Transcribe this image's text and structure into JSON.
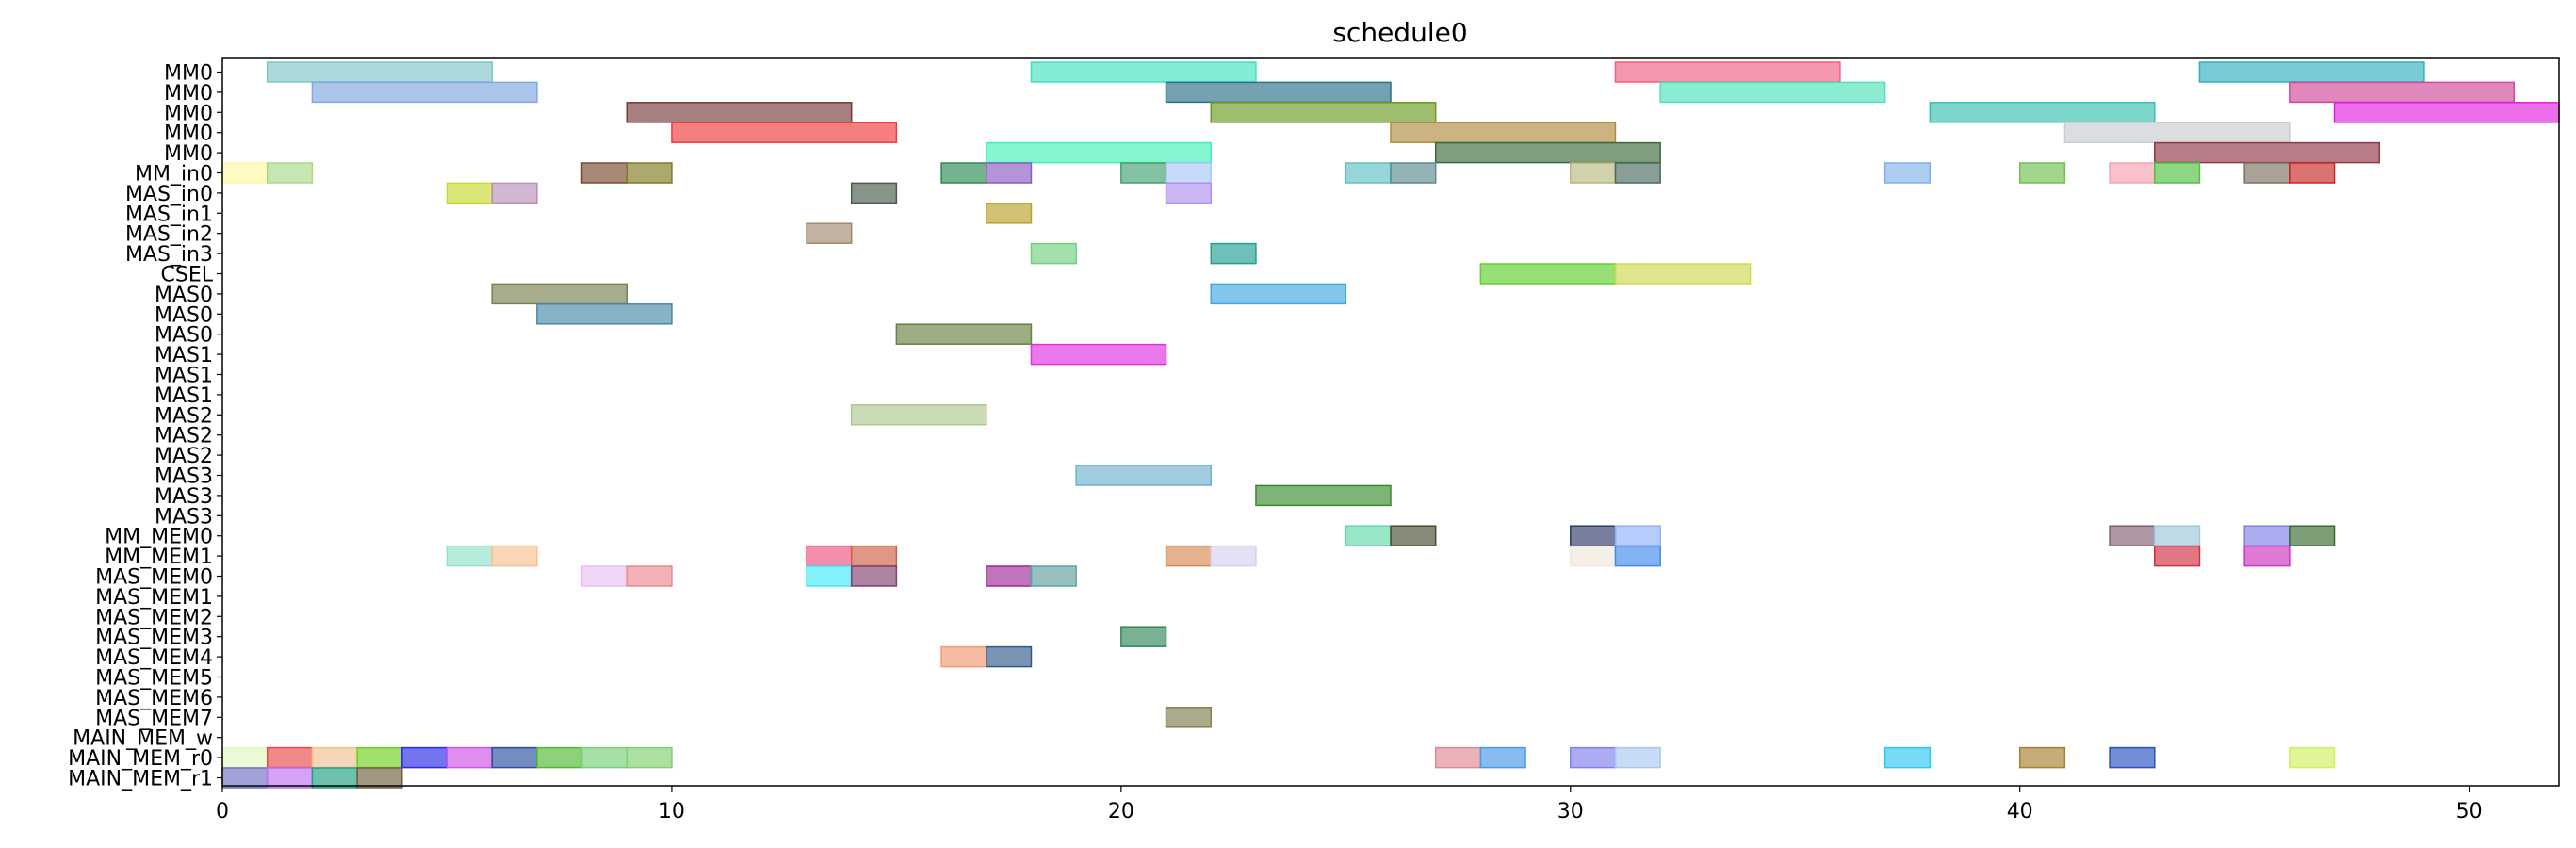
{
  "chart_data": {
    "type": "gantt",
    "title": "schedule0",
    "xlabel": "",
    "ylabel": "",
    "xlim": [
      0,
      52
    ],
    "xticks": [
      0,
      10,
      20,
      30,
      40,
      50
    ],
    "grid": false,
    "rows": [
      "MM0",
      "MM0",
      "MM0",
      "MM0",
      "MM0",
      "MM_in0",
      "MAS_in0",
      "MAS_in1",
      "MAS_in2",
      "MAS_in3",
      "CSEL",
      "MAS0",
      "MAS0",
      "MAS0",
      "MAS1",
      "MAS1",
      "MAS1",
      "MAS2",
      "MAS2",
      "MAS2",
      "MAS3",
      "MAS3",
      "MAS3",
      "MM_MEM0",
      "MM_MEM1",
      "MAS_MEM0",
      "MAS_MEM1",
      "MAS_MEM2",
      "MAS_MEM3",
      "MAS_MEM4",
      "MAS_MEM5",
      "MAS_MEM6",
      "MAS_MEM7",
      "MAIN_MEM_w",
      "MAIN_MEM_r0",
      "MAIN_MEM_r1"
    ],
    "bars": [
      {
        "row": 0,
        "start": 1,
        "end": 6,
        "color": "#7fc6c6"
      },
      {
        "row": 0,
        "start": 18,
        "end": 23,
        "color": "#40e0c0"
      },
      {
        "row": 0,
        "start": 31,
        "end": 36,
        "color": "#f06080"
      },
      {
        "row": 0,
        "start": 44,
        "end": 49,
        "color": "#30b0c0"
      },
      {
        "row": 1,
        "start": 2,
        "end": 7,
        "color": "#80a8e0"
      },
      {
        "row": 1,
        "start": 21,
        "end": 26,
        "color": "#2a7088"
      },
      {
        "row": 1,
        "start": 32,
        "end": 37,
        "color": "#50e0b8"
      },
      {
        "row": 1,
        "start": 46,
        "end": 51,
        "color": "#d04898"
      },
      {
        "row": 2,
        "start": 9,
        "end": 14,
        "color": "#7a3a3a"
      },
      {
        "row": 2,
        "start": 22,
        "end": 27,
        "color": "#6a9a20"
      },
      {
        "row": 2,
        "start": 38,
        "end": 43,
        "color": "#38c0b0"
      },
      {
        "row": 2,
        "start": 47,
        "end": 52,
        "color": "#e020e0"
      },
      {
        "row": 3,
        "start": 10,
        "end": 15,
        "color": "#f03a3a"
      },
      {
        "row": 3,
        "start": 26,
        "end": 31,
        "color": "#b08a40"
      },
      {
        "row": 3,
        "start": 41,
        "end": 46,
        "color": "#c8ccd0"
      },
      {
        "row": 4,
        "start": 17,
        "end": 22,
        "color": "#40f0b8"
      },
      {
        "row": 4,
        "start": 27,
        "end": 32,
        "color": "#3a6a3a"
      },
      {
        "row": 4,
        "start": 43,
        "end": 48,
        "color": "#903848"
      },
      {
        "row": 5,
        "start": 0,
        "end": 1,
        "color": "#fff8a0"
      },
      {
        "row": 5,
        "start": 1,
        "end": 2,
        "color": "#a8d888"
      },
      {
        "row": 5,
        "start": 8,
        "end": 9,
        "color": "#7a4a30"
      },
      {
        "row": 5,
        "start": 9,
        "end": 10,
        "color": "#807a20"
      },
      {
        "row": 5,
        "start": 16,
        "end": 17,
        "color": "#2a8a50"
      },
      {
        "row": 5,
        "start": 17,
        "end": 18,
        "color": "#8a5ac0"
      },
      {
        "row": 5,
        "start": 20,
        "end": 21,
        "color": "#40a070"
      },
      {
        "row": 5,
        "start": 21,
        "end": 22,
        "color": "#a8c8f8"
      },
      {
        "row": 5,
        "start": 25,
        "end": 26,
        "color": "#60c0c0"
      },
      {
        "row": 5,
        "start": 26,
        "end": 27,
        "color": "#5a8a90"
      },
      {
        "row": 5,
        "start": 30,
        "end": 31,
        "color": "#b8b880"
      },
      {
        "row": 5,
        "start": 31,
        "end": 32,
        "color": "#4a6a60"
      },
      {
        "row": 5,
        "start": 37,
        "end": 38,
        "color": "#80b0e8"
      },
      {
        "row": 5,
        "start": 40,
        "end": 41,
        "color": "#70c050"
      },
      {
        "row": 5,
        "start": 42,
        "end": 43,
        "color": "#f8a0b0"
      },
      {
        "row": 5,
        "start": 43,
        "end": 44,
        "color": "#50c040"
      },
      {
        "row": 5,
        "start": 45,
        "end": 46,
        "color": "#7a7060"
      },
      {
        "row": 5,
        "start": 46,
        "end": 47,
        "color": "#c82828"
      },
      {
        "row": 6,
        "start": 5,
        "end": 6,
        "color": "#c8d830"
      },
      {
        "row": 6,
        "start": 6,
        "end": 7,
        "color": "#b890b8"
      },
      {
        "row": 6,
        "start": 14,
        "end": 15,
        "color": "#4a5a4a"
      },
      {
        "row": 6,
        "start": 21,
        "end": 22,
        "color": "#b090f0"
      },
      {
        "row": 7,
        "start": 17,
        "end": 18,
        "color": "#b8a028"
      },
      {
        "row": 8,
        "start": 13,
        "end": 14,
        "color": "#a08870"
      },
      {
        "row": 9,
        "start": 18,
        "end": 19,
        "color": "#70d080"
      },
      {
        "row": 9,
        "start": 22,
        "end": 23,
        "color": "#20a090"
      },
      {
        "row": 10,
        "start": 28,
        "end": 31,
        "color": "#60d030"
      },
      {
        "row": 10,
        "start": 31,
        "end": 34,
        "color": "#d0d850"
      },
      {
        "row": 11,
        "start": 6,
        "end": 9,
        "color": "#7a8050"
      },
      {
        "row": 11,
        "start": 22,
        "end": 25,
        "color": "#40a8e0"
      },
      {
        "row": 12,
        "start": 7,
        "end": 10,
        "color": "#4a88a8"
      },
      {
        "row": 13,
        "start": 15,
        "end": 18,
        "color": "#6a8040"
      },
      {
        "row": 14,
        "start": 18,
        "end": 21,
        "color": "#e030e0"
      },
      {
        "row": 17,
        "start": 14,
        "end": 17,
        "color": "#b0c890"
      },
      {
        "row": 20,
        "start": 19,
        "end": 22,
        "color": "#70b0d0"
      },
      {
        "row": 21,
        "start": 23,
        "end": 26,
        "color": "#3a8a30"
      },
      {
        "row": 23,
        "start": 25,
        "end": 26,
        "color": "#60d8a8"
      },
      {
        "row": 23,
        "start": 26,
        "end": 27,
        "color": "#4a4a30"
      },
      {
        "row": 23,
        "start": 30,
        "end": 31,
        "color": "#303a6a"
      },
      {
        "row": 23,
        "start": 31,
        "end": 32,
        "color": "#90b0f8"
      },
      {
        "row": 23,
        "start": 42,
        "end": 43,
        "color": "#806070"
      },
      {
        "row": 23,
        "start": 43,
        "end": 44,
        "color": "#a0c8d8"
      },
      {
        "row": 23,
        "start": 45,
        "end": 46,
        "color": "#8080e8"
      },
      {
        "row": 23,
        "start": 46,
        "end": 47,
        "color": "#3a6a30"
      },
      {
        "row": 24,
        "start": 5,
        "end": 6,
        "color": "#90e0c8"
      },
      {
        "row": 24,
        "start": 6,
        "end": 7,
        "color": "#f8c090"
      },
      {
        "row": 24,
        "start": 13,
        "end": 14,
        "color": "#f05080"
      },
      {
        "row": 24,
        "start": 14,
        "end": 15,
        "color": "#d06040"
      },
      {
        "row": 24,
        "start": 21,
        "end": 22,
        "color": "#d88850"
      },
      {
        "row": 24,
        "start": 22,
        "end": 23,
        "color": "#d8d0f0"
      },
      {
        "row": 24,
        "start": 30,
        "end": 31,
        "color": "#f0e8d8"
      },
      {
        "row": 24,
        "start": 31,
        "end": 32,
        "color": "#4088f0"
      },
      {
        "row": 24,
        "start": 43,
        "end": 44,
        "color": "#d03040"
      },
      {
        "row": 24,
        "start": 45,
        "end": 46,
        "color": "#d030c0"
      },
      {
        "row": 25,
        "start": 8,
        "end": 9,
        "color": "#e8c0f0"
      },
      {
        "row": 25,
        "start": 9,
        "end": 10,
        "color": "#e88890"
      },
      {
        "row": 25,
        "start": 13,
        "end": 14,
        "color": "#40e8f8"
      },
      {
        "row": 25,
        "start": 14,
        "end": 15,
        "color": "#804070"
      },
      {
        "row": 25,
        "start": 17,
        "end": 18,
        "color": "#a02898"
      },
      {
        "row": 25,
        "start": 18,
        "end": 19,
        "color": "#60a0a0"
      },
      {
        "row": 28,
        "start": 20,
        "end": 21,
        "color": "#308858"
      },
      {
        "row": 29,
        "start": 16,
        "end": 17,
        "color": "#f09870"
      },
      {
        "row": 29,
        "start": 17,
        "end": 18,
        "color": "#305a88"
      },
      {
        "row": 32,
        "start": 21,
        "end": 22,
        "color": "#808050"
      },
      {
        "row": 34,
        "start": 0,
        "end": 1,
        "color": "#e0f8c0"
      },
      {
        "row": 34,
        "start": 1,
        "end": 2,
        "color": "#e84848"
      },
      {
        "row": 34,
        "start": 2,
        "end": 3,
        "color": "#f0c090"
      },
      {
        "row": 34,
        "start": 3,
        "end": 4,
        "color": "#70d020"
      },
      {
        "row": 34,
        "start": 4,
        "end": 5,
        "color": "#2828e8"
      },
      {
        "row": 34,
        "start": 5,
        "end": 6,
        "color": "#d050e8"
      },
      {
        "row": 34,
        "start": 6,
        "end": 7,
        "color": "#2850a0"
      },
      {
        "row": 34,
        "start": 7,
        "end": 8,
        "color": "#50b830"
      },
      {
        "row": 34,
        "start": 8,
        "end": 9,
        "color": "#78d078"
      },
      {
        "row": 34,
        "start": 9,
        "end": 10,
        "color": "#80d070"
      },
      {
        "row": 34,
        "start": 27,
        "end": 28,
        "color": "#e08890"
      },
      {
        "row": 34,
        "start": 28,
        "end": 29,
        "color": "#4898e8"
      },
      {
        "row": 34,
        "start": 30,
        "end": 31,
        "color": "#8080f0"
      },
      {
        "row": 34,
        "start": 31,
        "end": 32,
        "color": "#a8c8f0"
      },
      {
        "row": 34,
        "start": 37,
        "end": 38,
        "color": "#30c8f0"
      },
      {
        "row": 34,
        "start": 40,
        "end": 41,
        "color": "#a88030"
      },
      {
        "row": 34,
        "start": 42,
        "end": 43,
        "color": "#2850c0"
      },
      {
        "row": 34,
        "start": 46,
        "end": 47,
        "color": "#d0f060"
      },
      {
        "row": 35,
        "start": 0,
        "end": 1,
        "color": "#7070c0"
      },
      {
        "row": 35,
        "start": 1,
        "end": 2,
        "color": "#c070f0"
      },
      {
        "row": 35,
        "start": 2,
        "end": 3,
        "color": "#20a080"
      },
      {
        "row": 35,
        "start": 3,
        "end": 4,
        "color": "#706040"
      }
    ]
  }
}
